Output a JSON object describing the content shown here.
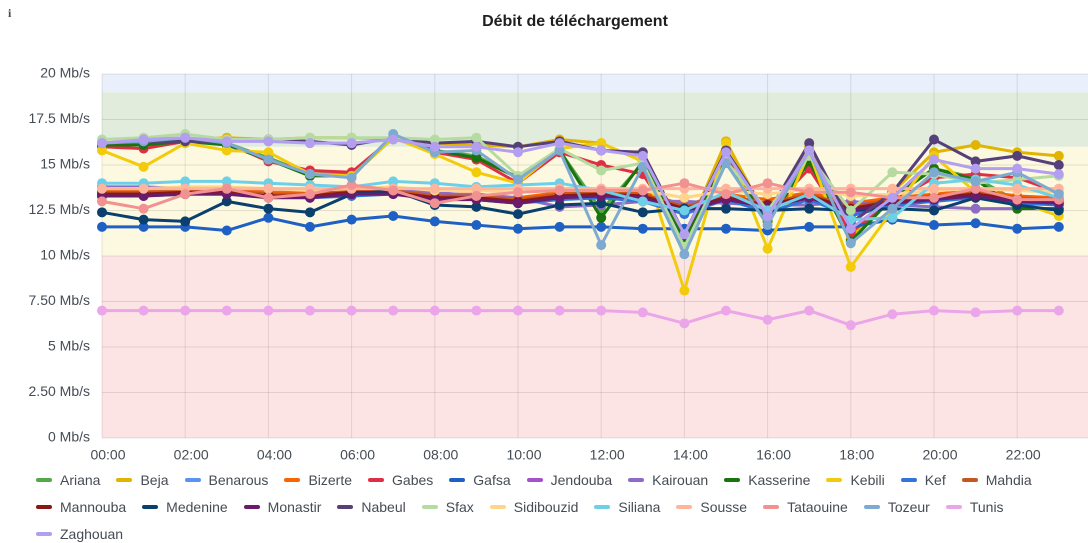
{
  "chart_data": {
    "type": "line",
    "title": "Débit de téléchargement",
    "categories": [
      "00:00",
      null,
      "02:00",
      null,
      "04:00",
      null,
      "06:00",
      null,
      "08:00",
      null,
      "10:00",
      null,
      "12:00",
      null,
      "14:00",
      null,
      "16:00",
      null,
      "18:00",
      null,
      "20:00",
      null,
      "22:00",
      null
    ],
    "ylim": [
      0,
      20
    ],
    "yticks": [
      {
        "value": 0,
        "label": "0 Mb/s"
      },
      {
        "value": 2.5,
        "label": "2.50 Mb/s"
      },
      {
        "value": 5,
        "label": "5 Mb/s"
      },
      {
        "value": 7.5,
        "label": "7.50 Mb/s"
      },
      {
        "value": 10,
        "label": "10 Mb/s"
      },
      {
        "value": 12.5,
        "label": "12.5 Mb/s"
      },
      {
        "value": 15,
        "label": "15 Mb/s"
      },
      {
        "value": 17.5,
        "label": "17.5 Mb/s"
      },
      {
        "value": 20,
        "label": "20 Mb/s"
      }
    ],
    "grid": true,
    "thresholds": [
      {
        "from": 0,
        "to": 10,
        "color": "#fde4e4"
      },
      {
        "from": 10,
        "to": 16,
        "color": "#fdf9e0"
      },
      {
        "from": 16,
        "to": 19,
        "color": "#e1ecdc"
      },
      {
        "from": 19,
        "to": 20,
        "color": "#e9f0fb"
      }
    ],
    "series": [
      {
        "name": "Ariana",
        "color": "#56a64b",
        "values": [
          16.2,
          16.2,
          16.4,
          16.2,
          15.4,
          14.5,
          14.5,
          16.5,
          15.8,
          15.5,
          14.3,
          15.8,
          12.5,
          15.1,
          10.9,
          15.3,
          12.1,
          15.3,
          10.9,
          13.3,
          14.8,
          14.3,
          13,
          12.8
        ]
      },
      {
        "name": "Beja",
        "color": "#e0b400",
        "values": [
          16.1,
          16.3,
          16.4,
          16.5,
          16.4,
          16.5,
          16.5,
          16.4,
          16.2,
          16.1,
          16,
          16.4,
          16.2,
          15.2,
          11,
          16.3,
          12,
          16,
          11,
          13.5,
          15.7,
          16.1,
          15.7,
          15.5
        ]
      },
      {
        "name": "Benarous",
        "color": "#5794f2",
        "values": [
          13.5,
          13.5,
          13.6,
          13.6,
          13.5,
          13.4,
          13.5,
          13.6,
          13.4,
          13.3,
          13.1,
          13.4,
          13.5,
          13.3,
          12.5,
          13.3,
          12.6,
          13.3,
          12.4,
          13,
          13.3,
          13.5,
          13.2,
          13.1
        ]
      },
      {
        "name": "Bizerte",
        "color": "#fa6400",
        "values": [
          13.6,
          13.6,
          13.7,
          13.7,
          13.5,
          13.5,
          13.8,
          13.7,
          13.4,
          13.4,
          13.2,
          13.5,
          13.6,
          13.5,
          12.8,
          13.4,
          13.1,
          13.5,
          12.9,
          13.2,
          13.4,
          13.6,
          13.3,
          13.2
        ]
      },
      {
        "name": "Gabes",
        "color": "#e02f44",
        "values": [
          16,
          15.9,
          16.3,
          16.2,
          15.2,
          14.7,
          14.6,
          16.5,
          15.7,
          15.3,
          14,
          15.7,
          15,
          14.5,
          11,
          15.5,
          12.4,
          14.8,
          11.3,
          13,
          14.3,
          14.5,
          14.3,
          13.5
        ]
      },
      {
        "name": "Gafsa",
        "color": "#1f60c4",
        "values": [
          11.6,
          11.6,
          11.6,
          11.4,
          12.1,
          11.6,
          12,
          12.2,
          11.9,
          11.7,
          11.5,
          11.6,
          11.6,
          11.5,
          11.5,
          11.5,
          11.4,
          11.6,
          11.6,
          12,
          11.7,
          11.8,
          11.5,
          11.6
        ]
      },
      {
        "name": "Jendouba",
        "color": "#a352cc",
        "values": [
          13.4,
          13.4,
          13.5,
          13.5,
          13.4,
          13.3,
          13.4,
          13.5,
          13.3,
          13.2,
          13,
          13.2,
          13.3,
          13.1,
          12.4,
          13.2,
          12.5,
          13.2,
          12.3,
          12.9,
          13.1,
          13.3,
          13,
          12.9
        ]
      },
      {
        "name": "Kairouan",
        "color": "#8f6bc8",
        "values": [
          13.8,
          13.8,
          13.7,
          13.7,
          13.7,
          13.6,
          13.6,
          13.7,
          13.5,
          13.3,
          13.2,
          12.7,
          12.8,
          13,
          13,
          12.9,
          12.8,
          12.8,
          13,
          12.8,
          12.7,
          12.6,
          12.6,
          12.6
        ]
      },
      {
        "name": "Kasserine",
        "color": "#19730e",
        "values": [
          16.1,
          16.1,
          16.3,
          16.1,
          15.3,
          14.4,
          14.4,
          16.5,
          15.8,
          15.4,
          14.3,
          15.8,
          12.1,
          15.2,
          10.8,
          15.3,
          11.9,
          15.2,
          10.8,
          13.2,
          14.8,
          14.2,
          12.6,
          12.6
        ]
      },
      {
        "name": "Kebili",
        "color": "#f2cc0c",
        "values": [
          15.8,
          14.9,
          16.2,
          15.8,
          15.7,
          14.5,
          14.4,
          16.5,
          15.6,
          14.6,
          14,
          15.9,
          16.2,
          15.2,
          8.1,
          16.2,
          10.4,
          15.7,
          9.4,
          12.5,
          15.5,
          13.5,
          13,
          12.2
        ]
      },
      {
        "name": "Kef",
        "color": "#3274d9",
        "values": [
          13.3,
          13.3,
          13.4,
          13.4,
          13.3,
          13.2,
          13.3,
          13.4,
          13.2,
          13.1,
          12.9,
          13.1,
          13.2,
          13,
          12.3,
          13.1,
          12.4,
          13.1,
          12.2,
          12.8,
          13,
          13.2,
          12.9,
          12.8
        ]
      },
      {
        "name": "Mahdia",
        "color": "#c4561f",
        "values": [
          13.5,
          13.5,
          13.6,
          13.6,
          13.4,
          13.4,
          13.6,
          13.6,
          13.3,
          13.3,
          13.1,
          13.4,
          13.5,
          13.4,
          12.7,
          13.3,
          12.9,
          13.4,
          12.7,
          13.1,
          13.3,
          13.5,
          13.2,
          13.1
        ]
      },
      {
        "name": "Mannouba",
        "color": "#8a1616",
        "values": [
          13.4,
          13.4,
          13.5,
          13.5,
          13.3,
          13.3,
          13.5,
          13.5,
          13.2,
          13.2,
          13,
          13.3,
          13.4,
          13.3,
          12.6,
          13.2,
          12.8,
          13.3,
          12.6,
          13,
          13.2,
          13.4,
          13.1,
          13
        ]
      },
      {
        "name": "Medenine",
        "color": "#0a3f6e",
        "values": [
          12.4,
          12,
          11.9,
          13,
          12.6,
          12.4,
          13.4,
          13.6,
          12.8,
          12.7,
          12.3,
          12.8,
          12.9,
          12.4,
          12.6,
          12.6,
          12.5,
          12.6,
          12.5,
          12.6,
          12.5,
          13.2,
          12.8,
          12.5
        ]
      },
      {
        "name": "Monastir",
        "color": "#6b1b6b",
        "values": [
          13.3,
          13.3,
          13.4,
          13.4,
          13.2,
          13.2,
          13.4,
          13.4,
          13.1,
          13.1,
          12.9,
          13.2,
          13.3,
          13.2,
          12.5,
          13.1,
          12.7,
          13.2,
          12.5,
          12.9,
          13.1,
          13.3,
          13,
          12.9
        ]
      },
      {
        "name": "Nabeul",
        "color": "#56407a",
        "values": [
          16.2,
          16.3,
          16.3,
          16.3,
          16.4,
          16.3,
          16.1,
          16.5,
          16.2,
          16.3,
          16,
          16.3,
          15.8,
          15.7,
          11.2,
          15.8,
          12.3,
          16.2,
          11.8,
          13.5,
          16.4,
          15.2,
          15.5,
          15
        ]
      },
      {
        "name": "Sfax",
        "color": "#b5dba0",
        "values": [
          16.4,
          16.5,
          16.7,
          16.4,
          16.4,
          16.5,
          16.5,
          16.5,
          16.4,
          16.5,
          14.4,
          15.9,
          14.7,
          15.1,
          10.5,
          15.2,
          12.5,
          15.5,
          12.5,
          14.6,
          14.5,
          14,
          14.2,
          14.4
        ]
      },
      {
        "name": "Sidibouzid",
        "color": "#ffd58a",
        "values": [
          13.7,
          13.7,
          13.8,
          13.8,
          13.7,
          13.6,
          13.7,
          13.8,
          13.6,
          13.6,
          13.5,
          13.7,
          13.7,
          13.6,
          13.2,
          13.6,
          13.4,
          13.7,
          13.3,
          13.4,
          13.6,
          13.7,
          13.6,
          13.5
        ]
      },
      {
        "name": "Siliana",
        "color": "#6ed0e8",
        "values": [
          14,
          14,
          14.1,
          14.1,
          14,
          13.9,
          13.8,
          14.1,
          14,
          13.8,
          13.9,
          14,
          13.6,
          13,
          12.5,
          13.5,
          12.5,
          13.4,
          12,
          12.1,
          14,
          14.2,
          13.9,
          13.2
        ]
      },
      {
        "name": "Sousse",
        "color": "#ffb59b",
        "values": [
          13.7,
          13.7,
          13.7,
          13.7,
          13.7,
          13.7,
          13.7,
          13.7,
          13.7,
          13.7,
          13.7,
          13.7,
          13.7,
          13.7,
          13.7,
          13.7,
          13.7,
          13.7,
          13.7,
          13.7,
          13.7,
          13.7,
          13.7,
          13.7
        ]
      },
      {
        "name": "Tataouine",
        "color": "#f29191",
        "values": [
          13,
          12.6,
          13.4,
          13.7,
          13.2,
          13.4,
          13.9,
          13.6,
          12.9,
          13.3,
          13.5,
          13.6,
          13.6,
          13.6,
          14,
          13.4,
          14,
          13.5,
          13.5,
          13.2,
          13.2,
          13.7,
          13.1,
          13.1
        ]
      },
      {
        "name": "Tozeur",
        "color": "#7eaad1",
        "values": [
          16.2,
          16.3,
          16.5,
          16.2,
          15.3,
          14.5,
          14.3,
          16.7,
          15.7,
          15.8,
          14.2,
          15.8,
          10.6,
          14.9,
          10.1,
          15.1,
          11.7,
          15.8,
          10.7,
          12.6,
          14.6,
          14.1,
          14.6,
          13.4
        ]
      },
      {
        "name": "Tunis",
        "color": "#eaa6e8",
        "values": [
          7,
          7,
          7,
          7,
          7,
          7,
          7,
          7,
          7,
          7,
          7,
          7,
          7,
          6.9,
          6.3,
          7,
          6.5,
          7,
          6.2,
          6.8,
          7,
          6.9,
          7,
          7
        ]
      },
      {
        "name": "Zaghouan",
        "color": "#b39ef0",
        "values": [
          16.2,
          16.4,
          16.5,
          16.3,
          16.3,
          16.2,
          16.2,
          16.4,
          16,
          16,
          15.7,
          16.2,
          15.8,
          15.5,
          11.2,
          15.7,
          12.2,
          15.8,
          11.5,
          13.2,
          15.3,
          14.8,
          14.8,
          14.5
        ]
      }
    ]
  }
}
